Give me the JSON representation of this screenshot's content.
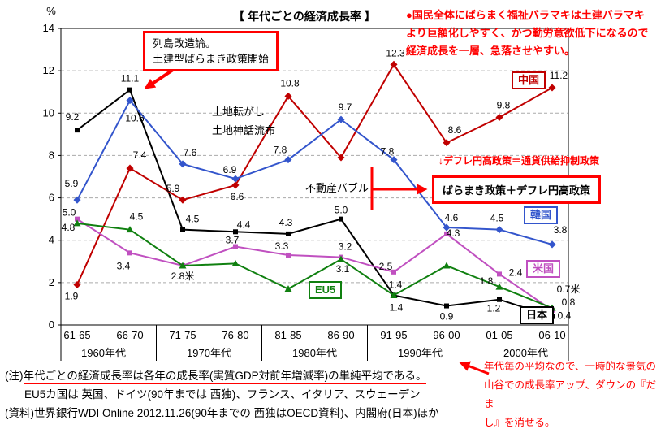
{
  "page": {
    "background": "#ffffff"
  },
  "chart_data": {
    "type": "line",
    "title": "【 年代ごとの経済成長率 】",
    "ylabel": "%",
    "ylim": [
      0,
      14
    ],
    "yticks": [
      0,
      2,
      4,
      6,
      8,
      10,
      12,
      14
    ],
    "grid": true,
    "legend_position": "floating",
    "categories": [
      "61-65",
      "66-70",
      "71-75",
      "76-80",
      "81-85",
      "86-90",
      "91-95",
      "96-00",
      "01-05",
      "06-10"
    ],
    "decade_groups": [
      "1960年代",
      "1970年代",
      "1980年代",
      "1990年代",
      "2000年代"
    ],
    "series": [
      {
        "key": "japan",
        "name": "日本",
        "color": "#000000",
        "marker": "square",
        "values": [
          9.2,
          11.1,
          4.5,
          4.4,
          4.3,
          5.0,
          1.4,
          0.9,
          1.2,
          0.4
        ],
        "labels": [
          "9.2",
          "11.1",
          "4.5",
          "4.4",
          "4.3",
          "5.0",
          "1.4",
          "0.9",
          "1.2",
          "0.4"
        ],
        "label_offsets": [
          [
            -6,
            -12
          ],
          [
            0,
            -10
          ],
          [
            12,
            -9
          ],
          [
            10,
            -5
          ],
          [
            -3,
            -10
          ],
          [
            0,
            -7
          ],
          [
            3,
            19
          ],
          [
            0,
            17
          ],
          [
            -7,
            15
          ],
          [
            15,
            3
          ]
        ]
      },
      {
        "key": "china",
        "name": "中国",
        "color": "#c00000",
        "marker": "diamond",
        "values": [
          1.9,
          7.4,
          5.9,
          6.6,
          10.8,
          7.9,
          12.3,
          8.6,
          9.8,
          11.2
        ],
        "labels": [
          "1.9",
          "7.4",
          "5.9",
          "6.6",
          "10.8",
          "",
          "12.3",
          "8.6",
          "9.8",
          "11.2"
        ],
        "label_offsets": [
          [
            -7,
            18
          ],
          [
            12,
            -12
          ],
          [
            -12,
            -10
          ],
          [
            2,
            18
          ],
          [
            2,
            -12
          ],
          [
            0,
            0
          ],
          [
            2,
            -10
          ],
          [
            10,
            -12
          ],
          [
            5,
            -11
          ],
          [
            8,
            -11
          ]
        ]
      },
      {
        "key": "korea",
        "name": "韓国",
        "color": "#3355cc",
        "marker": "diamond",
        "values": [
          5.9,
          10.6,
          7.6,
          6.9,
          7.8,
          9.7,
          7.8,
          4.6,
          4.5,
          3.8
        ],
        "labels": [
          "5.9",
          "10.6",
          "7.6",
          "6.9",
          "7.8",
          "9.7",
          "7.8",
          "4.6",
          "4.5",
          "3.8"
        ],
        "label_offsets": [
          [
            -7,
            -16
          ],
          [
            6,
            26
          ],
          [
            9,
            -10
          ],
          [
            -7,
            -7
          ],
          [
            -10,
            -8
          ],
          [
            5,
            -11
          ],
          [
            -8,
            -6
          ],
          [
            6,
            -8
          ],
          [
            -3,
            -10
          ],
          [
            10,
            -14
          ]
        ]
      },
      {
        "key": "usa",
        "name": "米国",
        "color": "#c050c0",
        "marker": "square",
        "values": [
          5.0,
          3.4,
          2.8,
          3.7,
          3.3,
          3.2,
          2.5,
          4.3,
          2.4,
          0.7
        ],
        "labels": [
          "5.0",
          "3.4",
          "2.8米",
          "3.7",
          "3.3",
          "3.2",
          "2.5",
          "4.3",
          "2.4",
          "0.7米"
        ],
        "label_offsets": [
          [
            -10,
            -4
          ],
          [
            -8,
            20
          ],
          [
            0,
            17
          ],
          [
            -4,
            -4
          ],
          [
            -8,
            -7
          ],
          [
            5,
            -9
          ],
          [
            -10,
            -3
          ],
          [
            8,
            3
          ],
          [
            20,
            2
          ],
          [
            20,
            -22
          ]
        ]
      },
      {
        "key": "eu5",
        "name": "EU5",
        "color": "#108010",
        "marker": "triangle",
        "values": [
          4.8,
          4.5,
          2.8,
          2.9,
          1.7,
          3.1,
          1.4,
          2.8,
          1.8,
          0.8
        ],
        "labels": [
          "4.8",
          "4.5",
          "",
          "",
          "",
          "3.1",
          "1.4",
          "",
          "1.8",
          "0.8"
        ],
        "label_offsets": [
          [
            -11,
            9
          ],
          [
            8,
            -12
          ],
          [
            0,
            0
          ],
          [
            0,
            0
          ],
          [
            0,
            0
          ],
          [
            2,
            16
          ],
          [
            2,
            -9
          ],
          [
            0,
            0
          ],
          [
            -16,
            -3
          ],
          [
            20,
            -3
          ]
        ]
      }
    ]
  },
  "annotations": {
    "accent_red": "#ff0000",
    "top_right": [
      "●国民全体にばらまく福祉バラマキは土建バラマキ",
      "より巨額化しやすく、かつ勤労意欲低下になるので",
      "経済成長を一層、急落させやすい。"
    ],
    "retto_box": [
      "列島改造論。",
      "土建型ばらまき政策開始"
    ],
    "land_flipping": "土地転がし",
    "land_myth": "土地神話流布",
    "real_estate_bubble": "不動産バブル",
    "deflation_policy": "↓デフレ円高政策＝通貨供給抑制政策",
    "baramaki_box": "ばらまき政策＋デフレ円高政策",
    "bottom_right": [
      "年代毎の平均なので、一時的な景気の",
      "山谷での成長率アップ、ダウンの『だま",
      "し』を消せる。"
    ]
  },
  "footnotes": {
    "note1_prefix": "(注)",
    "note1_underlined": "年代ごとの経済成長率は各年の成長率(実質GDP対前年増減率)の単純平均である。",
    "note2": "EU5カ国は 英国、ドイツ(90年までは 西独)、フランス、イタリア、スウェーデン",
    "note3": "(資料)世界銀行WDI Online  2012.11.26(90年までの 西独はOECD資料)、内閣府(日本)ほか"
  }
}
